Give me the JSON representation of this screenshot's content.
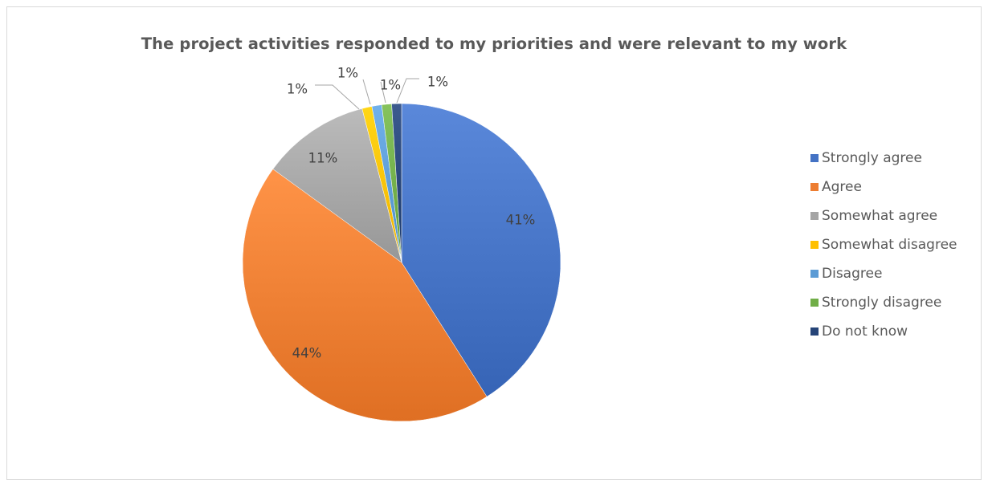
{
  "chart_data": {
    "type": "pie",
    "title": "The project activities responded to my priorities and were relevant to my work",
    "categories": [
      "Strongly agree",
      "Agree",
      "Somewhat agree",
      "Somewhat disagree",
      "Disagree",
      "Strongly disagree",
      "Do not know"
    ],
    "values": [
      41,
      44,
      11,
      1,
      1,
      1,
      1
    ],
    "data_labels": [
      "41%",
      "44%",
      "11%",
      "1%",
      "1%",
      "1%",
      "1%"
    ],
    "colors": [
      "#4472c4",
      "#ed7d31",
      "#a5a5a5",
      "#ffc000",
      "#5b9bd5",
      "#70ad47",
      "#264478"
    ],
    "legend_position": "right",
    "start_angle_deg": 0,
    "direction": "clockwise"
  }
}
